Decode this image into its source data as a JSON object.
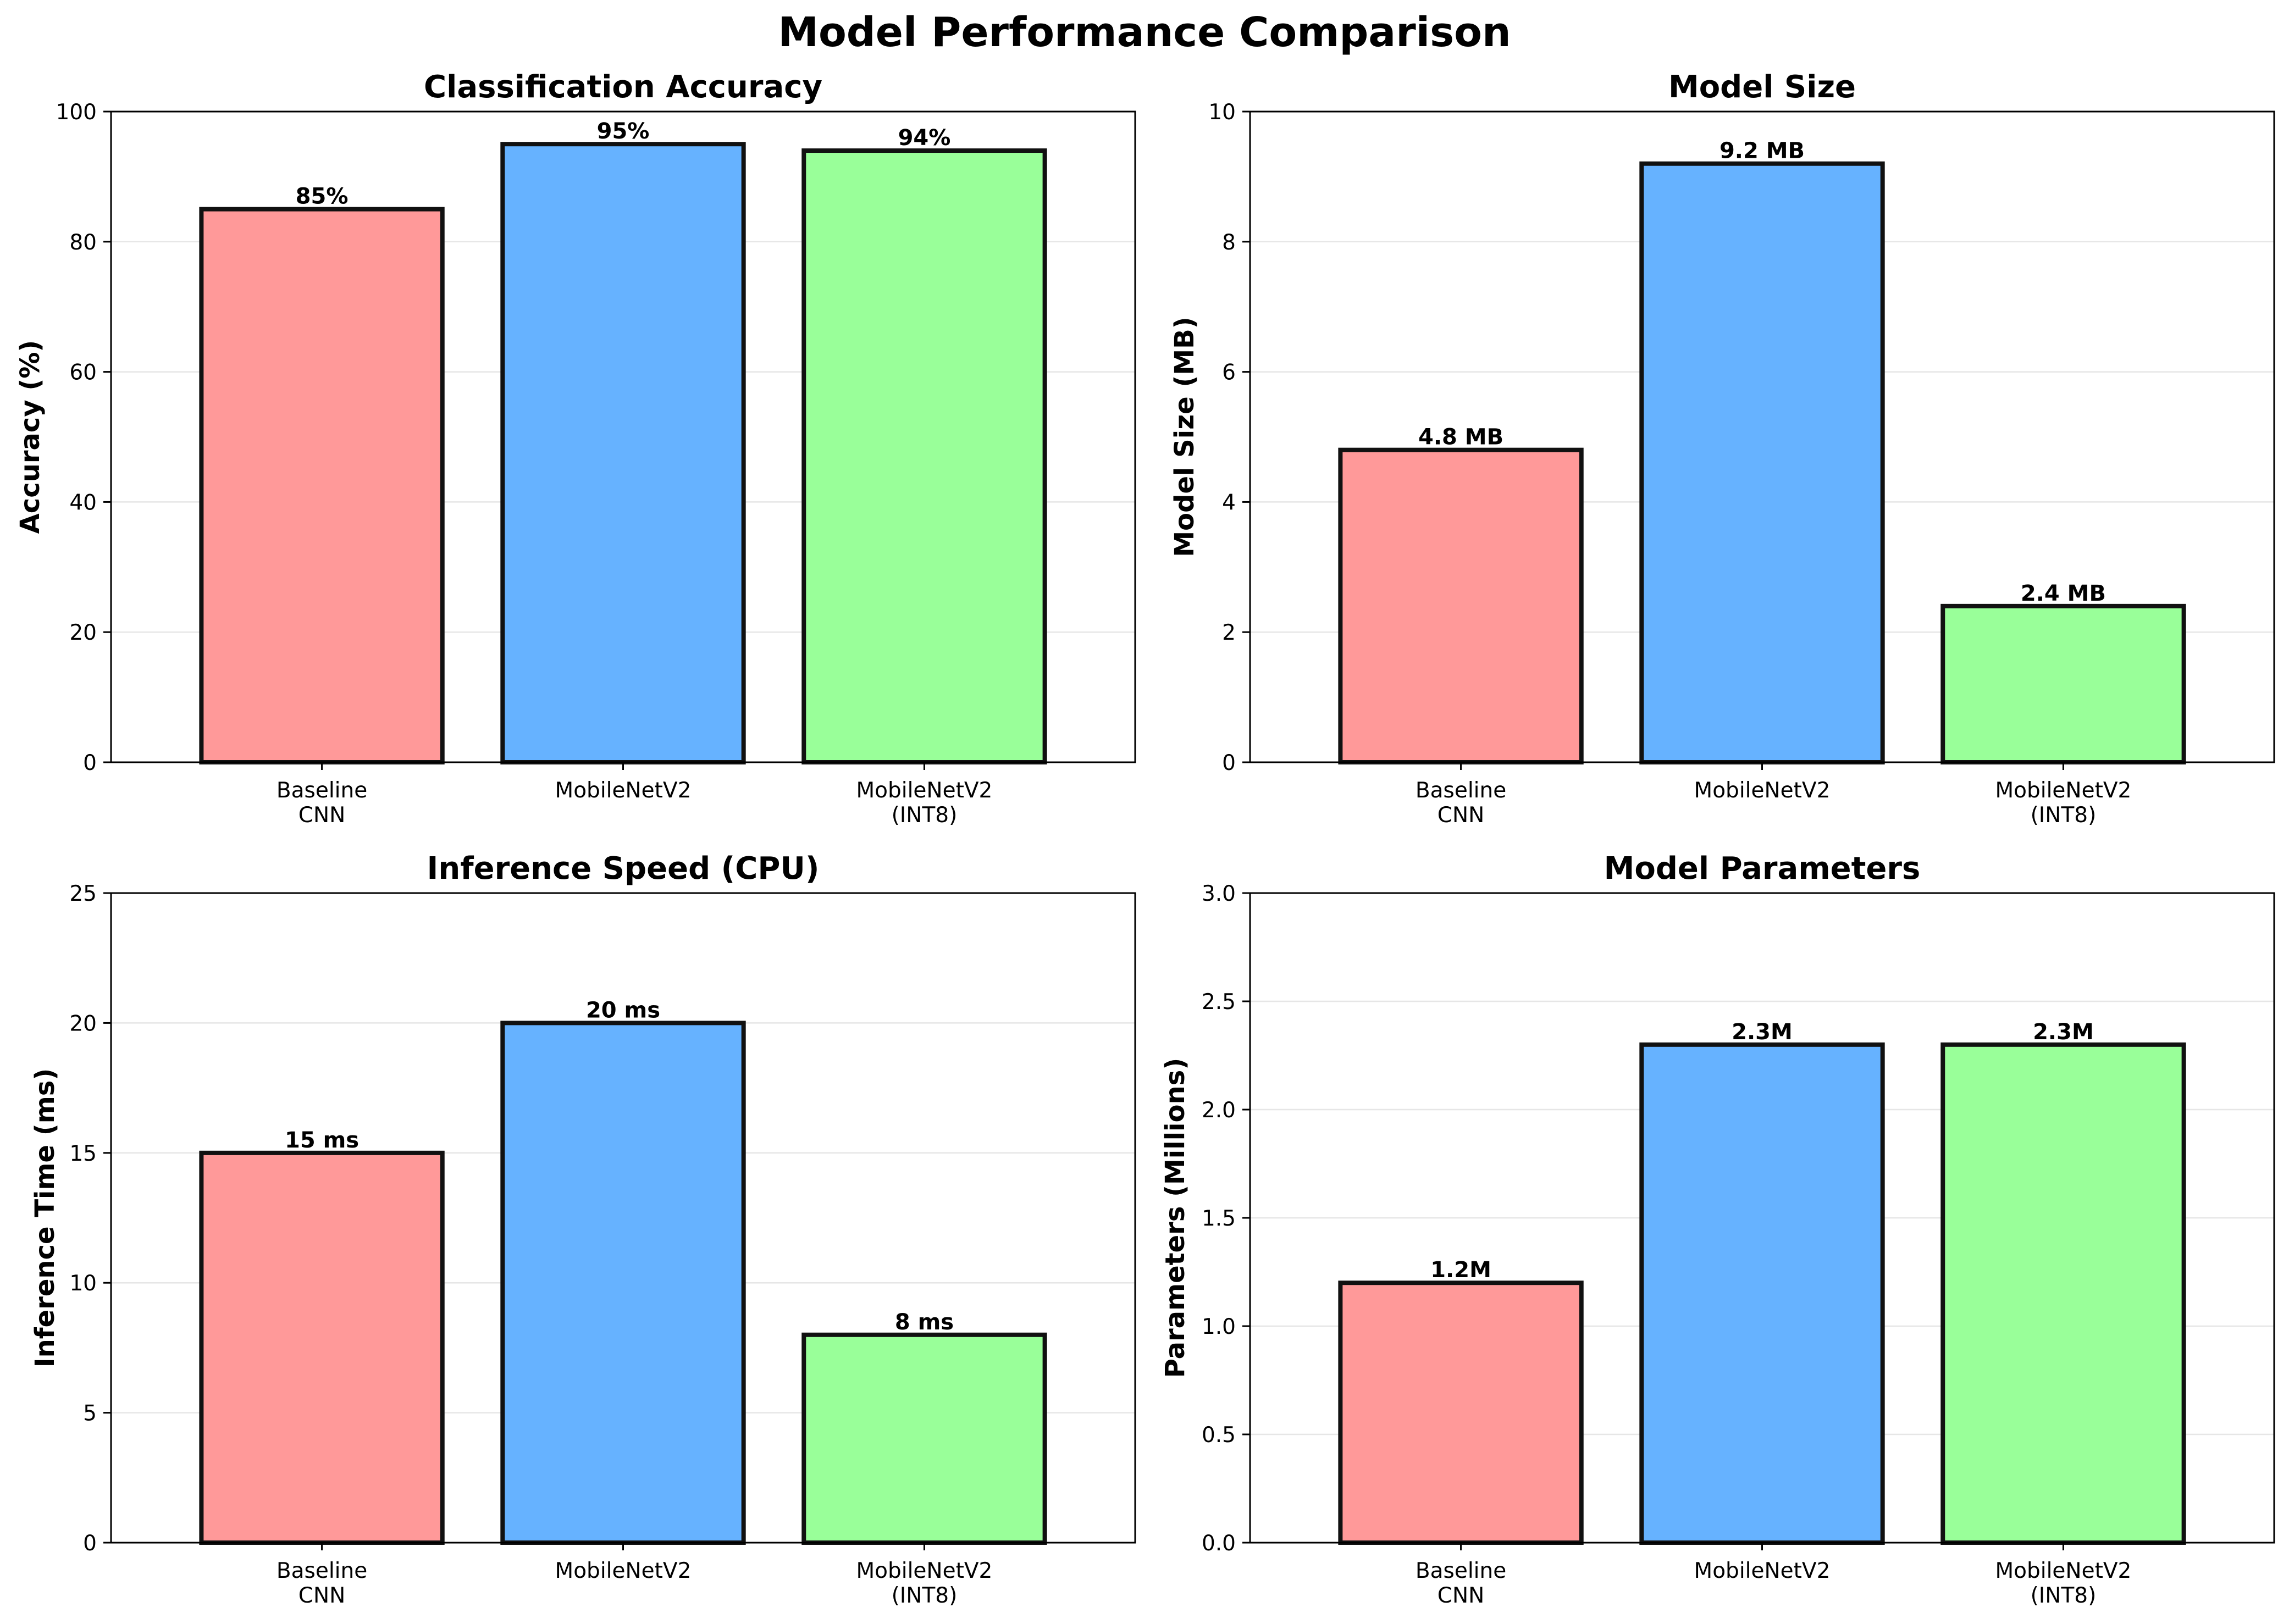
{
  "figure": {
    "title": "Model Performance Comparison"
  },
  "colors": [
    "#ff9999",
    "#66b2ff",
    "#99ff99"
  ],
  "chart_data": [
    {
      "type": "bar",
      "title": "Classification Accuracy",
      "ylabel": "Accuracy (%)",
      "categories": [
        [
          "Baseline",
          "CNN"
        ],
        [
          "MobileNetV2"
        ],
        [
          "MobileNetV2",
          "(INT8)"
        ]
      ],
      "values": [
        85,
        95,
        94
      ],
      "value_labels": [
        "85%",
        "95%",
        "94%"
      ],
      "ylim": [
        0,
        100
      ],
      "yticks": [
        0,
        20,
        40,
        60,
        80,
        100
      ],
      "ytick_labels": [
        "0",
        "20",
        "40",
        "60",
        "80",
        "100"
      ],
      "grid": "y"
    },
    {
      "type": "bar",
      "title": "Model Size",
      "ylabel": "Model Size (MB)",
      "categories": [
        [
          "Baseline",
          "CNN"
        ],
        [
          "MobileNetV2"
        ],
        [
          "MobileNetV2",
          "(INT8)"
        ]
      ],
      "values": [
        4.8,
        9.2,
        2.4
      ],
      "value_labels": [
        "4.8 MB",
        "9.2 MB",
        "2.4 MB"
      ],
      "ylim": [
        0,
        10
      ],
      "yticks": [
        0,
        2,
        4,
        6,
        8,
        10
      ],
      "ytick_labels": [
        "0",
        "2",
        "4",
        "6",
        "8",
        "10"
      ],
      "grid": "y"
    },
    {
      "type": "bar",
      "title": "Inference Speed (CPU)",
      "ylabel": "Inference Time (ms)",
      "categories": [
        [
          "Baseline",
          "CNN"
        ],
        [
          "MobileNetV2"
        ],
        [
          "MobileNetV2",
          "(INT8)"
        ]
      ],
      "values": [
        15,
        20,
        8
      ],
      "value_labels": [
        "15 ms",
        "20 ms",
        "8 ms"
      ],
      "ylim": [
        0,
        25
      ],
      "yticks": [
        0,
        5,
        10,
        15,
        20,
        25
      ],
      "ytick_labels": [
        "0",
        "5",
        "10",
        "15",
        "20",
        "25"
      ],
      "grid": "y"
    },
    {
      "type": "bar",
      "title": "Model Parameters",
      "ylabel": "Parameters (Millions)",
      "categories": [
        [
          "Baseline",
          "CNN"
        ],
        [
          "MobileNetV2"
        ],
        [
          "MobileNetV2",
          "(INT8)"
        ]
      ],
      "values": [
        1.2,
        2.3,
        2.3
      ],
      "value_labels": [
        "1.2M",
        "2.3M",
        "2.3M"
      ],
      "ylim": [
        0,
        3
      ],
      "yticks": [
        0,
        0.5,
        1,
        1.5,
        2,
        2.5,
        3
      ],
      "ytick_labels": [
        "0.0",
        "0.5",
        "1.0",
        "1.5",
        "2.0",
        "2.5",
        "3.0"
      ],
      "grid": "y"
    }
  ]
}
